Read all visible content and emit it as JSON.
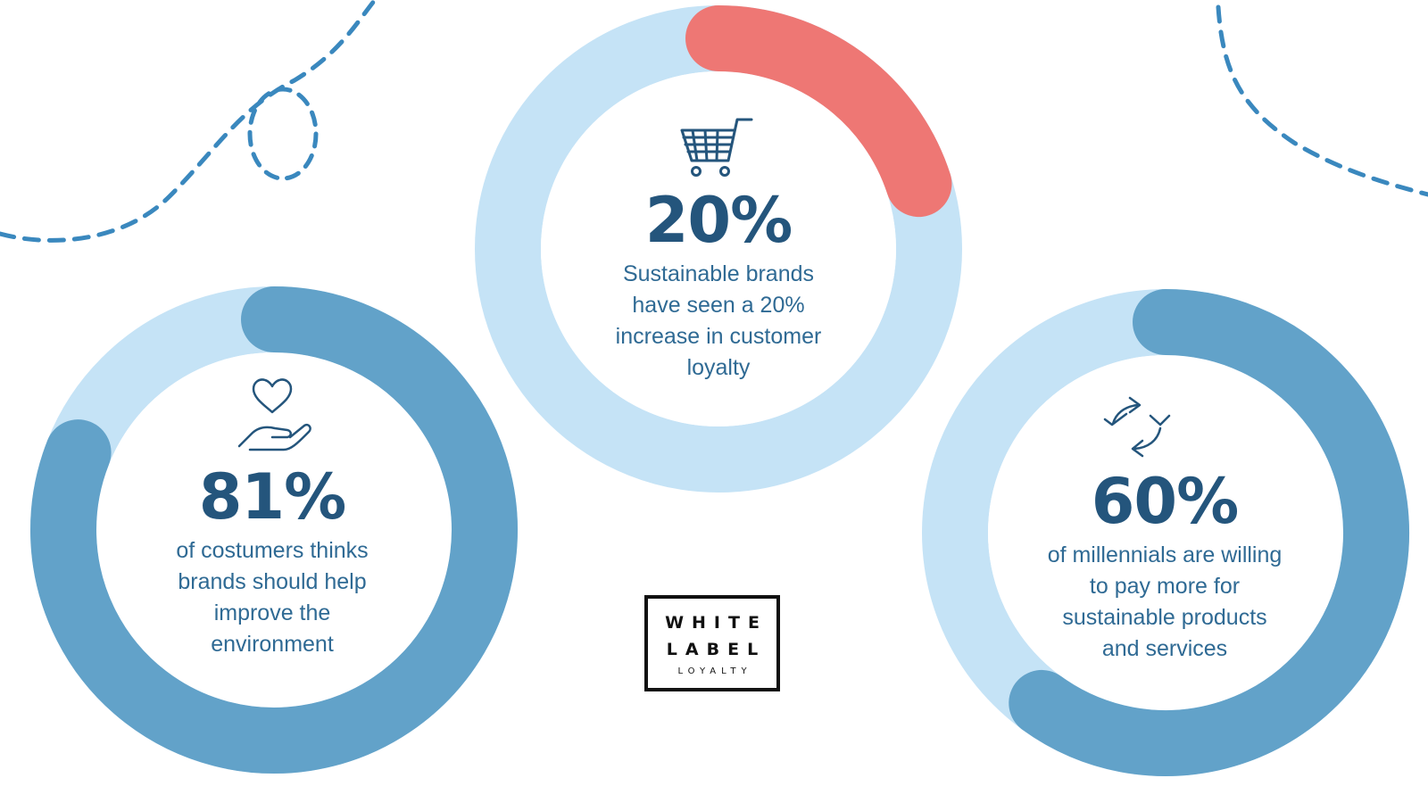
{
  "colors": {
    "track": "#c5e3f6",
    "arc_blue": "#62a2c9",
    "arc_red": "#ee7774",
    "ring_blue": "#5aa8dd",
    "ring_dark": "#2e7ab2",
    "ring_red": "#e85a5a",
    "dashes": "#3a88be",
    "value_text": "#24557c",
    "desc_text": "#2f6a94"
  },
  "chart_data": [
    {
      "type": "pie",
      "variant": "donut",
      "title": "",
      "value_label": "81%",
      "value": 81,
      "description": "of costumers thinks brands should help improve the environment",
      "icon": "heart-hand-icon",
      "ring_color": "#5aa8dd",
      "arc_color": "#62a2c9"
    },
    {
      "type": "pie",
      "variant": "donut",
      "title": "",
      "value_label": "20%",
      "value": 20,
      "description": "Sustainable brands have seen a 20% increase in customer loyalty",
      "icon": "shopping-cart-icon",
      "ring_color": "#2e7ab2",
      "arc_color": "#ee7774"
    },
    {
      "type": "pie",
      "variant": "donut",
      "title": "",
      "value_label": "60%",
      "value": 60,
      "description": "of millennials are willing to pay more for sustainable products and services",
      "icon": "recycle-arrows-icon",
      "ring_color": "#e85a5a",
      "arc_color": "#62a2c9"
    }
  ],
  "text": {
    "stat1": {
      "value": "81%",
      "lines": [
        "of costumers thinks",
        "brands should help",
        "improve the",
        "environment"
      ]
    },
    "stat2": {
      "value": "20%",
      "lines": [
        "Sustainable brands",
        "have seen a 20%",
        "increase in customer",
        "loyalty"
      ]
    },
    "stat3": {
      "value": "60%",
      "lines": [
        "of millennials are willing",
        "to pay more for",
        "sustainable products",
        "and services"
      ]
    }
  },
  "logo": {
    "line1": "WHITE",
    "line2": "LABEL",
    "line3": "LOYALTY"
  }
}
